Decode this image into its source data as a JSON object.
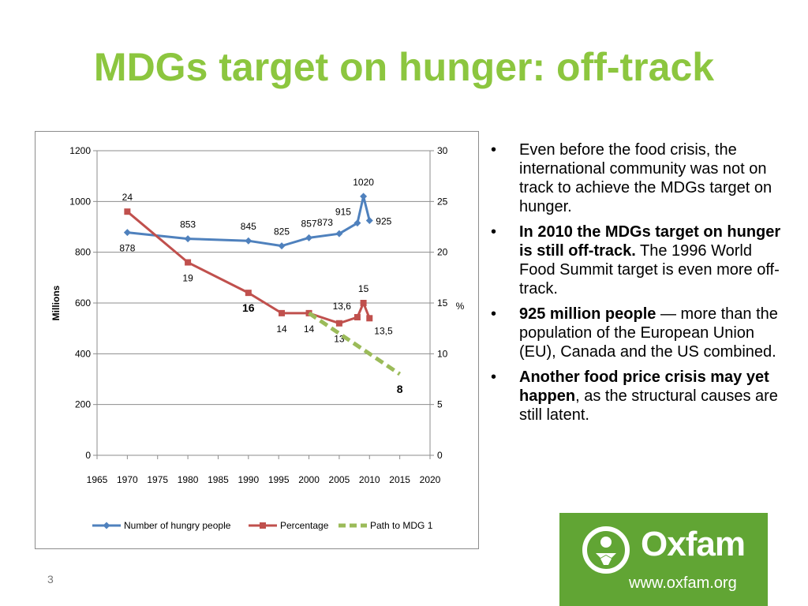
{
  "slide": {
    "title": "MDGs target on hunger: off-track",
    "page_number": "3"
  },
  "bullets": [
    {
      "bold": "",
      "text": "Even before the food crisis, the international community was not on track to achieve the MDGs target on hunger."
    },
    {
      "bold": "In 2010 the MDGs target on hunger is still off-track.",
      "text": " The 1996 World Food Summit target is even more off-track."
    },
    {
      "bold": "925 million people",
      "text": " — more than the population of the European Union (EU), Canada and the US combined."
    },
    {
      "bold": "Another food price crisis may yet happen",
      "text": ", as the structural causes are still latent."
    }
  ],
  "logo": {
    "name": "Oxfam",
    "url": "www.oxfam.org",
    "icon": "oxfam-figure-icon",
    "color": "#61a534"
  },
  "colors": {
    "title": "#8cc63f",
    "hungry": "#4f81bd",
    "percentage": "#c0504d",
    "path": "#9bbb59"
  },
  "chart_data": {
    "type": "line",
    "ylabel": "Millions",
    "y2label": "%",
    "x_ticks": [
      "1965",
      "1970",
      "1975",
      "1980",
      "1985",
      "1990",
      "1995",
      "2000",
      "2005",
      "2010",
      "2015",
      "2020"
    ],
    "y_ticks": [
      "0",
      "200",
      "400",
      "600",
      "800",
      "1000",
      "1200"
    ],
    "y2_ticks": [
      "0",
      "5",
      "10",
      "15",
      "20",
      "25",
      "30"
    ],
    "xlim": [
      1965,
      2020
    ],
    "ylim": [
      0,
      1200
    ],
    "y2lim": [
      0,
      30
    ],
    "grid": true,
    "legend_position": "bottom",
    "series": [
      {
        "name": "Number of hungry people",
        "axis": "left",
        "color": "#4f81bd",
        "marker": "diamond",
        "dash": false,
        "points": [
          {
            "x": 1970,
            "y": 878
          },
          {
            "x": 1980,
            "y": 853
          },
          {
            "x": 1990,
            "y": 845
          },
          {
            "x": 1995.5,
            "y": 825
          },
          {
            "x": 2000,
            "y": 857
          },
          {
            "x": 2005,
            "y": 873
          },
          {
            "x": 2008,
            "y": 915
          },
          {
            "x": 2009,
            "y": 1020
          },
          {
            "x": 2010,
            "y": 925
          }
        ],
        "labels": [
          {
            "i": 0,
            "text": "878",
            "pos": "below"
          },
          {
            "i": 1,
            "text": "853",
            "pos": "above"
          },
          {
            "i": 2,
            "text": "845",
            "pos": "above"
          },
          {
            "i": 3,
            "text": "825",
            "pos": "above"
          },
          {
            "i": 4,
            "text": "857",
            "pos": "above"
          },
          {
            "i": 5,
            "text": "873",
            "pos": "above-left"
          },
          {
            "i": 6,
            "text": "915",
            "pos": "above-left"
          },
          {
            "i": 7,
            "text": "1020",
            "pos": "above"
          },
          {
            "i": 8,
            "text": "925",
            "pos": "right"
          }
        ]
      },
      {
        "name": "Percentage",
        "axis": "right",
        "color": "#c0504d",
        "marker": "square",
        "dash": false,
        "points": [
          {
            "x": 1970,
            "y": 24
          },
          {
            "x": 1980,
            "y": 19
          },
          {
            "x": 1990,
            "y": 16
          },
          {
            "x": 1995.5,
            "y": 14
          },
          {
            "x": 2000,
            "y": 14
          },
          {
            "x": 2005,
            "y": 13
          },
          {
            "x": 2008,
            "y": 13.6
          },
          {
            "x": 2009,
            "y": 15
          },
          {
            "x": 2010,
            "y": 13.5
          }
        ],
        "labels": [
          {
            "i": 0,
            "text": "24",
            "pos": "above"
          },
          {
            "i": 1,
            "text": "19",
            "pos": "below"
          },
          {
            "i": 2,
            "text": "16",
            "pos": "below-bold"
          },
          {
            "i": 3,
            "text": "14",
            "pos": "below"
          },
          {
            "i": 4,
            "text": "14",
            "pos": "below"
          },
          {
            "i": 5,
            "text": "13",
            "pos": "below"
          },
          {
            "i": 6,
            "text": "13,6",
            "pos": "above-left"
          },
          {
            "i": 7,
            "text": "15",
            "pos": "above"
          },
          {
            "i": 8,
            "text": "13,5",
            "pos": "below-right"
          }
        ]
      },
      {
        "name": "Path to MDG 1",
        "axis": "right",
        "color": "#9bbb59",
        "marker": "none",
        "dash": true,
        "points": [
          {
            "x": 2000,
            "y": 14
          },
          {
            "x": 2015,
            "y": 8
          }
        ],
        "labels": [
          {
            "i": 1,
            "text": "8",
            "pos": "below-bold"
          }
        ]
      }
    ]
  }
}
